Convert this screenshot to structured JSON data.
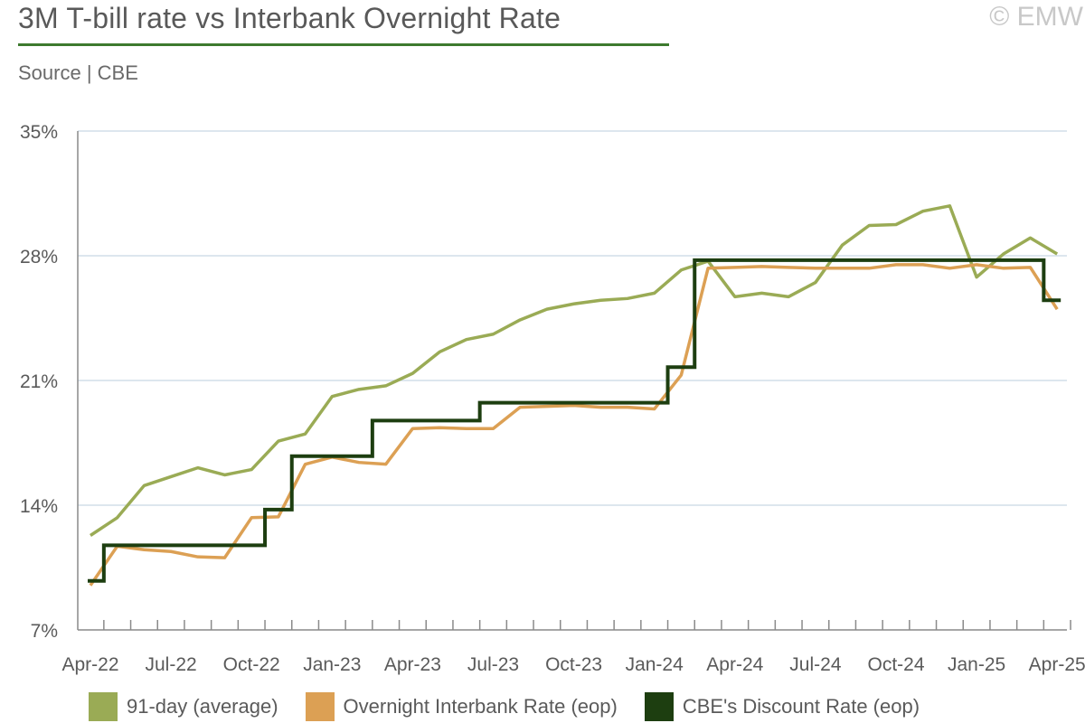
{
  "header": {
    "title": "3M T-bill rate vs Interbank Overnight Rate",
    "subtitle": "Source | CBE",
    "copyright": "© EMW"
  },
  "chart_data": {
    "type": "line",
    "title": "3M T-bill rate vs Interbank Overnight Rate",
    "xlabel": "",
    "ylabel": "",
    "ylim": [
      7,
      35
    ],
    "y_ticks": [
      "7%",
      "14%",
      "21%",
      "28%",
      "35%"
    ],
    "x_ticks": [
      "Apr-22",
      "Jul-22",
      "Oct-22",
      "Jan-23",
      "Apr-23",
      "Jul-23",
      "Oct-23",
      "Jan-24",
      "Apr-24",
      "Jul-24",
      "Oct-24",
      "Jan-25",
      "Apr-25"
    ],
    "x": [
      "Apr-22",
      "May-22",
      "Jun-22",
      "Jul-22",
      "Aug-22",
      "Sep-22",
      "Oct-22",
      "Nov-22",
      "Dec-22",
      "Jan-23",
      "Feb-23",
      "Mar-23",
      "Apr-23",
      "May-23",
      "Jun-23",
      "Jul-23",
      "Aug-23",
      "Sep-23",
      "Oct-23",
      "Nov-23",
      "Dec-23",
      "Jan-24",
      "Feb-24",
      "Mar-24",
      "Apr-24",
      "May-24",
      "Jun-24",
      "Jul-24",
      "Aug-24",
      "Sep-24",
      "Oct-24",
      "Nov-24",
      "Dec-24",
      "Jan-25",
      "Feb-25",
      "Mar-25",
      "Apr-25"
    ],
    "grid": true,
    "legend_position": "bottom",
    "series": [
      {
        "name": "91-day (average)",
        "color": "#9aab55",
        "style": "line",
        "values": [
          12.3,
          13.3,
          15.1,
          15.6,
          16.1,
          15.7,
          16.0,
          17.6,
          18.0,
          20.1,
          20.5,
          20.7,
          21.4,
          22.6,
          23.3,
          23.6,
          24.4,
          25.0,
          25.3,
          25.5,
          25.6,
          25.9,
          27.2,
          27.7,
          25.7,
          25.9,
          25.7,
          26.5,
          28.6,
          29.7,
          29.75,
          30.5,
          30.8,
          26.8,
          28.1,
          29.0,
          28.1
        ]
      },
      {
        "name": "Overnight Interbank Rate (eop)",
        "color": "#dca054",
        "style": "line",
        "values": [
          9.5,
          11.7,
          11.5,
          11.4,
          11.1,
          11.05,
          13.3,
          13.35,
          16.3,
          16.7,
          16.4,
          16.3,
          18.3,
          18.35,
          18.3,
          18.3,
          19.5,
          19.55,
          19.6,
          19.5,
          19.5,
          19.4,
          21.3,
          27.3,
          27.35,
          27.4,
          27.35,
          27.3,
          27.3,
          27.3,
          27.5,
          27.5,
          27.3,
          27.5,
          27.3,
          27.35,
          25.0
        ]
      },
      {
        "name": "CBE's Discount Rate (eop)",
        "color": "#1d3e10",
        "style": "step",
        "values": [
          9.75,
          11.75,
          11.75,
          11.75,
          11.75,
          11.75,
          11.75,
          13.75,
          16.75,
          16.75,
          16.75,
          18.75,
          18.75,
          18.75,
          18.75,
          19.75,
          19.75,
          19.75,
          19.75,
          19.75,
          19.75,
          19.75,
          21.75,
          27.75,
          27.75,
          27.75,
          27.75,
          27.75,
          27.75,
          27.75,
          27.75,
          27.75,
          27.75,
          27.75,
          27.75,
          27.75,
          25.5
        ]
      }
    ]
  }
}
